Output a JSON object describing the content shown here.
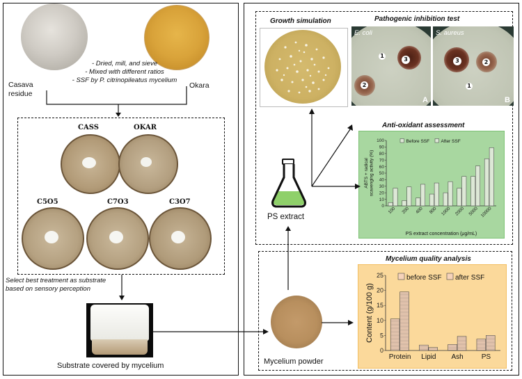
{
  "left": {
    "casava_label": "Casava\nresidue",
    "okara_label": "Okara",
    "steps": [
      "- Dried, mill, and sieve",
      "- Mixed with different ratios",
      "- SSF by P. citrinopileatus mycelium"
    ],
    "samples": [
      "CASS",
      "OKAR",
      "C5O5",
      "C7O3",
      "C3O7"
    ],
    "select_note": "Select best treatment as substrate\nbased on sensory perception",
    "substrate_caption": "Substrate covered by mycelium"
  },
  "right": {
    "growth_title": "Growth simulation",
    "pathogenic_title": "Pathogenic inhibition test",
    "ecoli_label": "E. coli",
    "saureus_label": "S. aureus",
    "plate_a": {
      "letter": "A",
      "zones": [
        "1",
        "2",
        "3"
      ]
    },
    "plate_b": {
      "letter": "B",
      "zones": [
        "1",
        "2",
        "3"
      ]
    },
    "antioxidant_title": "Anti-oxidant assessment",
    "ps_extract_label": "PS extract",
    "mycelium_title": "Mycelium quality analysis",
    "mycelium_powder_label": "Mycelium powder"
  },
  "chart_data": [
    {
      "type": "bar",
      "title": "Anti-oxidant assessment",
      "categories": [
        "100",
        "200",
        "400",
        "800",
        "1000",
        "2000",
        "5000",
        "10000"
      ],
      "series": [
        {
          "name": "Before SSF",
          "values": [
            5,
            8,
            12,
            18,
            20,
            27,
            45,
            72
          ]
        },
        {
          "name": "After SSF",
          "values": [
            27,
            29,
            33,
            35,
            37,
            45,
            61,
            89
          ]
        }
      ],
      "xlabel": "PS extract concentration (μg/mL)",
      "ylabel": "ABTS + radical\nscavenging activity (%)",
      "ylim": [
        0,
        100
      ],
      "yticks": [
        "0",
        "10",
        "20",
        "30",
        "40",
        "50",
        "60",
        "70",
        "80",
        "90",
        "100"
      ],
      "legend": "top",
      "colors": {
        "background": "#a8d7a0",
        "border": "#6fba66",
        "bar_fill": "#dde8d6",
        "bar_stroke": "#555555"
      }
    },
    {
      "type": "bar",
      "title": "Mycelium quality analysis",
      "categories": [
        "Protein",
        "Lipid",
        "Ash",
        "PS"
      ],
      "series": [
        {
          "name": "before SSF",
          "values": [
            10.5,
            1.8,
            2.0,
            3.8
          ]
        },
        {
          "name": "after SSF",
          "values": [
            19.5,
            1.0,
            4.7,
            5.0
          ]
        }
      ],
      "xlabel": "",
      "ylabel": "Content (g/100 g)",
      "ylim": [
        0,
        25
      ],
      "yticks": [
        "0",
        "5",
        "10",
        "15",
        "20",
        "25"
      ],
      "legend": "top",
      "colors": {
        "background": "#fbd99b",
        "border": "#f0b54c",
        "bar_fill": "#f6d3ba",
        "bar_stroke": "#444444"
      }
    }
  ]
}
